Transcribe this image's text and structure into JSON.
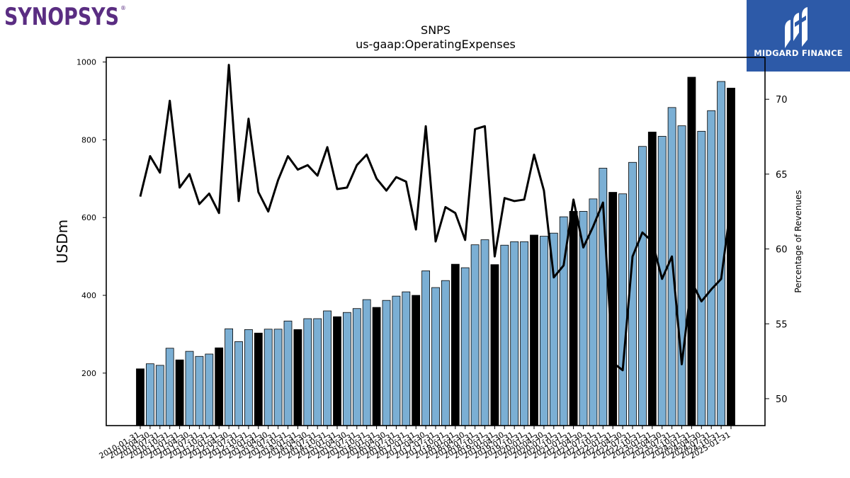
{
  "branding": {
    "left_logo_text": "SYNOPSYS",
    "right_logo_text": "MIDGARD FINANCE",
    "left_logo_color": "#5a2d82",
    "right_logo_bg": "#2d5aa8"
  },
  "chart_data": {
    "type": "bar",
    "title": "SNPS",
    "subtitle": "us-gaap:OperatingExpenses",
    "ylabel": "USDm",
    "y2label": "Percentage of Revenues",
    "ylim": [
      65,
      1012
    ],
    "y2lim": [
      48.2,
      72.8
    ],
    "yticks": [
      200,
      400,
      600,
      800,
      1000
    ],
    "y2ticks": [
      50,
      55,
      60,
      65,
      70
    ],
    "grid": false,
    "colors": {
      "quarter_bar": "#7bafd4",
      "annual_bar": "#000000",
      "line": "#000000"
    },
    "categories": [
      "2010-01-31",
      "2010-04-30",
      "2010-07-31",
      "2010-10-31",
      "2011-01-31",
      "2011-04-30",
      "2011-07-31",
      "2011-10-31",
      "2012-01-31",
      "2012-04-30",
      "2012-07-31",
      "2012-10-31",
      "2013-01-31",
      "2013-04-30",
      "2013-07-31",
      "2013-10-31",
      "2014-01-31",
      "2014-04-30",
      "2014-07-31",
      "2014-10-31",
      "2015-01-31",
      "2015-04-30",
      "2015-07-31",
      "2015-10-31",
      "2016-01-31",
      "2016-04-30",
      "2016-07-31",
      "2016-10-31",
      "2017-01-31",
      "2017-04-30",
      "2017-07-31",
      "2017-10-31",
      "2018-01-31",
      "2018-04-30",
      "2018-07-31",
      "2018-10-31",
      "2019-01-31",
      "2019-04-30",
      "2019-07-31",
      "2019-10-31",
      "2020-01-31",
      "2020-04-30",
      "2020-07-31",
      "2020-10-31",
      "2021-01-31",
      "2021-04-30",
      "2021-07-31",
      "2021-10-31",
      "2022-01-31",
      "2022-04-30",
      "2022-07-31",
      "2022-10-31",
      "2023-01-31",
      "2023-04-30",
      "2023-07-31",
      "2023-10-31",
      "2024-01-31",
      "2024-04-30",
      "2024-07-31",
      "2024-10-31",
      "2025-01-31"
    ],
    "bar_kind": [
      "annual",
      "quarter",
      "quarter",
      "quarter",
      "annual",
      "quarter",
      "quarter",
      "quarter",
      "annual",
      "quarter",
      "quarter",
      "quarter",
      "annual",
      "quarter",
      "quarter",
      "quarter",
      "annual",
      "quarter",
      "quarter",
      "quarter",
      "annual",
      "quarter",
      "quarter",
      "quarter",
      "annual",
      "quarter",
      "quarter",
      "quarter",
      "annual",
      "quarter",
      "quarter",
      "quarter",
      "annual",
      "quarter",
      "quarter",
      "quarter",
      "annual",
      "quarter",
      "quarter",
      "quarter",
      "annual",
      "quarter",
      "quarter",
      "quarter",
      "annual",
      "quarter",
      "quarter",
      "quarter",
      "annual",
      "quarter",
      "quarter",
      "quarter",
      "annual",
      "quarter",
      "quarter",
      "quarter",
      "annual",
      "quarter",
      "quarter",
      "quarter",
      "annual"
    ],
    "series": [
      {
        "kind": "bar",
        "axis": "left",
        "values": [
          211,
          224,
          220,
          264,
          234,
          256,
          243,
          249,
          265,
          314,
          281,
          312,
          303,
          313,
          313,
          334,
          312,
          340,
          340,
          360,
          345,
          356,
          366,
          389,
          369,
          387,
          398,
          409,
          400,
          463,
          420,
          438,
          480,
          471,
          530,
          543,
          479,
          529,
          538,
          538,
          555,
          552,
          560,
          602,
          616,
          616,
          648,
          727,
          665,
          661,
          742,
          783,
          820,
          809,
          883,
          836,
          961,
          822,
          875,
          950,
          933
        ]
      },
      {
        "kind": "line",
        "axis": "right",
        "values": [
          63.5,
          66.2,
          65.1,
          69.9,
          64.1,
          65.0,
          63.0,
          63.7,
          62.4,
          72.3,
          63.2,
          68.7,
          63.8,
          62.5,
          64.6,
          66.2,
          65.3,
          65.6,
          64.9,
          66.8,
          64.0,
          64.1,
          65.6,
          66.3,
          64.7,
          63.9,
          64.8,
          64.5,
          61.3,
          68.2,
          60.5,
          62.8,
          62.4,
          60.6,
          68.0,
          68.2,
          59.5,
          63.4,
          63.2,
          63.3,
          66.3,
          63.9,
          58.1,
          58.9,
          63.3,
          60.1,
          61.5,
          63.1,
          52.4,
          51.9,
          59.5,
          61.1,
          60.5,
          58.0,
          59.5,
          52.3,
          57.8,
          56.5,
          57.3,
          58.0,
          63.0
        ]
      }
    ]
  }
}
